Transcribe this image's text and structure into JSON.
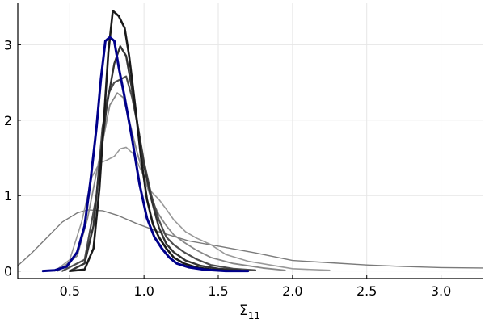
{
  "chart_data": {
    "type": "line",
    "title": "",
    "xlabel": "Σ",
    "xlabel_subscript": "11",
    "ylabel": "",
    "xlim": [
      0.15,
      3.28
    ],
    "ylim": [
      -0.1,
      3.55
    ],
    "xticks": [
      0.5,
      1.0,
      1.5,
      2.0,
      2.5,
      3.0
    ],
    "yticks": [
      0,
      1,
      2,
      3
    ],
    "xtick_labels": [
      "0.5",
      "1.0",
      "1.5",
      "2.0",
      "2.5",
      "3.0"
    ],
    "ytick_labels": [
      "0",
      "1",
      "2",
      "3"
    ],
    "grid": true,
    "legend": "none",
    "series": [
      {
        "color": "#7a7a7a",
        "width": 1.4,
        "points": [
          [
            0.15,
            0.07
          ],
          [
            0.25,
            0.25
          ],
          [
            0.35,
            0.45
          ],
          [
            0.45,
            0.65
          ],
          [
            0.55,
            0.77
          ],
          [
            0.62,
            0.81
          ],
          [
            0.72,
            0.8
          ],
          [
            0.82,
            0.74
          ],
          [
            0.95,
            0.63
          ],
          [
            1.1,
            0.52
          ],
          [
            1.3,
            0.4
          ],
          [
            1.5,
            0.33
          ],
          [
            1.75,
            0.24
          ],
          [
            2.0,
            0.14
          ],
          [
            2.25,
            0.11
          ],
          [
            2.5,
            0.08
          ],
          [
            2.75,
            0.06
          ],
          [
            3.0,
            0.045
          ],
          [
            3.28,
            0.04
          ]
        ]
      },
      {
        "color": "#999999",
        "width": 1.6,
        "points": [
          [
            0.4,
            0.0
          ],
          [
            0.5,
            0.15
          ],
          [
            0.58,
            0.65
          ],
          [
            0.65,
            1.25
          ],
          [
            0.7,
            1.43
          ],
          [
            0.75,
            1.47
          ],
          [
            0.8,
            1.52
          ],
          [
            0.84,
            1.62
          ],
          [
            0.88,
            1.64
          ],
          [
            0.93,
            1.55
          ],
          [
            1.0,
            1.25
          ],
          [
            1.05,
            1.05
          ],
          [
            1.1,
            0.95
          ],
          [
            1.15,
            0.82
          ],
          [
            1.2,
            0.68
          ],
          [
            1.28,
            0.52
          ],
          [
            1.35,
            0.44
          ],
          [
            1.45,
            0.35
          ],
          [
            1.55,
            0.22
          ],
          [
            1.7,
            0.13
          ],
          [
            1.85,
            0.08
          ],
          [
            2.0,
            0.03
          ],
          [
            2.25,
            0.01
          ]
        ]
      },
      {
        "color": "#888888",
        "width": 1.8,
        "points": [
          [
            0.42,
            0.0
          ],
          [
            0.55,
            0.2
          ],
          [
            0.62,
            0.7
          ],
          [
            0.68,
            1.3
          ],
          [
            0.72,
            1.7
          ],
          [
            0.77,
            2.2
          ],
          [
            0.82,
            2.36
          ],
          [
            0.86,
            2.3
          ],
          [
            0.9,
            2.0
          ],
          [
            0.95,
            1.6
          ],
          [
            1.0,
            1.25
          ],
          [
            1.05,
            0.95
          ],
          [
            1.1,
            0.75
          ],
          [
            1.15,
            0.6
          ],
          [
            1.2,
            0.48
          ],
          [
            1.27,
            0.38
          ],
          [
            1.35,
            0.28
          ],
          [
            1.45,
            0.18
          ],
          [
            1.6,
            0.1
          ],
          [
            1.8,
            0.04
          ],
          [
            1.95,
            0.01
          ]
        ]
      },
      {
        "color": "#4d4d4d",
        "width": 2.2,
        "points": [
          [
            0.45,
            0.0
          ],
          [
            0.6,
            0.15
          ],
          [
            0.68,
            1.0
          ],
          [
            0.72,
            1.9
          ],
          [
            0.76,
            2.35
          ],
          [
            0.8,
            2.5
          ],
          [
            0.85,
            2.55
          ],
          [
            0.88,
            2.58
          ],
          [
            0.92,
            2.3
          ],
          [
            0.96,
            1.9
          ],
          [
            1.0,
            1.45
          ],
          [
            1.05,
            1.0
          ],
          [
            1.1,
            0.68
          ],
          [
            1.15,
            0.45
          ],
          [
            1.2,
            0.35
          ],
          [
            1.27,
            0.25
          ],
          [
            1.35,
            0.16
          ],
          [
            1.45,
            0.08
          ],
          [
            1.6,
            0.03
          ],
          [
            1.75,
            0.01
          ]
        ]
      },
      {
        "color": "#333333",
        "width": 2.4,
        "points": [
          [
            0.5,
            0.0
          ],
          [
            0.6,
            0.1
          ],
          [
            0.66,
            0.6
          ],
          [
            0.7,
            1.4
          ],
          [
            0.75,
            2.2
          ],
          [
            0.8,
            2.75
          ],
          [
            0.84,
            2.98
          ],
          [
            0.88,
            2.85
          ],
          [
            0.92,
            2.4
          ],
          [
            0.96,
            1.9
          ],
          [
            1.0,
            1.4
          ],
          [
            1.05,
            0.95
          ],
          [
            1.1,
            0.58
          ],
          [
            1.15,
            0.36
          ],
          [
            1.2,
            0.25
          ],
          [
            1.28,
            0.14
          ],
          [
            1.38,
            0.07
          ],
          [
            1.5,
            0.03
          ],
          [
            1.65,
            0.01
          ]
        ]
      },
      {
        "color": "#1a1a1a",
        "width": 2.6,
        "points": [
          [
            0.5,
            0.0
          ],
          [
            0.6,
            0.02
          ],
          [
            0.66,
            0.3
          ],
          [
            0.7,
            1.1
          ],
          [
            0.73,
            2.0
          ],
          [
            0.76,
            2.9
          ],
          [
            0.79,
            3.45
          ],
          [
            0.83,
            3.38
          ],
          [
            0.87,
            3.22
          ],
          [
            0.9,
            2.85
          ],
          [
            0.94,
            2.2
          ],
          [
            0.98,
            1.5
          ],
          [
            1.02,
            0.95
          ],
          [
            1.06,
            0.62
          ],
          [
            1.1,
            0.45
          ],
          [
            1.15,
            0.3
          ],
          [
            1.2,
            0.18
          ],
          [
            1.27,
            0.1
          ],
          [
            1.35,
            0.05
          ],
          [
            1.45,
            0.02
          ],
          [
            1.6,
            0.0
          ]
        ]
      },
      {
        "color": "#00008b",
        "width": 3.0,
        "points": [
          [
            0.32,
            0.0
          ],
          [
            0.4,
            0.01
          ],
          [
            0.48,
            0.06
          ],
          [
            0.55,
            0.25
          ],
          [
            0.6,
            0.6
          ],
          [
            0.64,
            1.2
          ],
          [
            0.68,
            1.9
          ],
          [
            0.71,
            2.55
          ],
          [
            0.74,
            3.05
          ],
          [
            0.77,
            3.1
          ],
          [
            0.8,
            3.05
          ],
          [
            0.83,
            2.7
          ],
          [
            0.87,
            2.3
          ],
          [
            0.92,
            1.75
          ],
          [
            0.97,
            1.15
          ],
          [
            1.02,
            0.7
          ],
          [
            1.07,
            0.45
          ],
          [
            1.12,
            0.3
          ],
          [
            1.17,
            0.18
          ],
          [
            1.22,
            0.1
          ],
          [
            1.3,
            0.05
          ],
          [
            1.4,
            0.02
          ],
          [
            1.55,
            0.0
          ],
          [
            1.7,
            0.0
          ]
        ]
      }
    ]
  }
}
